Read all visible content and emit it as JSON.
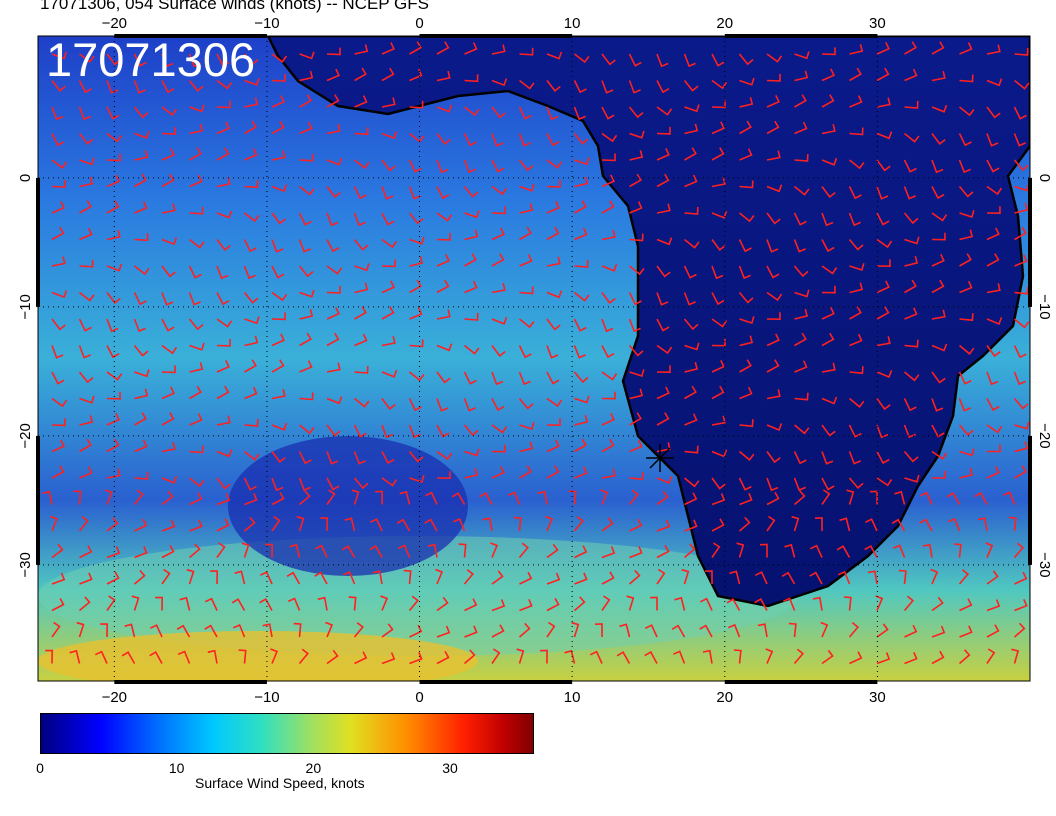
{
  "title": "17071306, 054 Surface winds (knots) -- NCEP GFS",
  "stamp": "17071306",
  "map": {
    "projection": "lat-lon",
    "lon_range": [
      -25,
      40
    ],
    "lat_range": [
      -39,
      11
    ],
    "lon_ticks": [
      "−20",
      "−10",
      "0",
      "10",
      "20",
      "30"
    ],
    "lon_tick_values": [
      -20,
      -10,
      0,
      10,
      20,
      30
    ],
    "lat_ticks": [
      "0",
      "−10",
      "−20",
      "−30"
    ],
    "lat_tick_values": [
      0,
      -10,
      -20,
      -30
    ],
    "barb_color": "#ff2020",
    "coast_color": "#000000",
    "field": "Surface wind speed with wind barbs"
  },
  "colorbar": {
    "label": "Surface Wind Speed, knots",
    "ticks": [
      "0",
      "10",
      "20",
      "30"
    ],
    "tick_values": [
      0,
      10,
      20,
      30
    ],
    "range": [
      0,
      36
    ],
    "colors": [
      "#000080",
      "#0000ff",
      "#0070ff",
      "#00c8ff",
      "#30e0c0",
      "#a0e060",
      "#e0e020",
      "#ff9000",
      "#ff2000",
      "#c00000",
      "#800000"
    ]
  }
}
